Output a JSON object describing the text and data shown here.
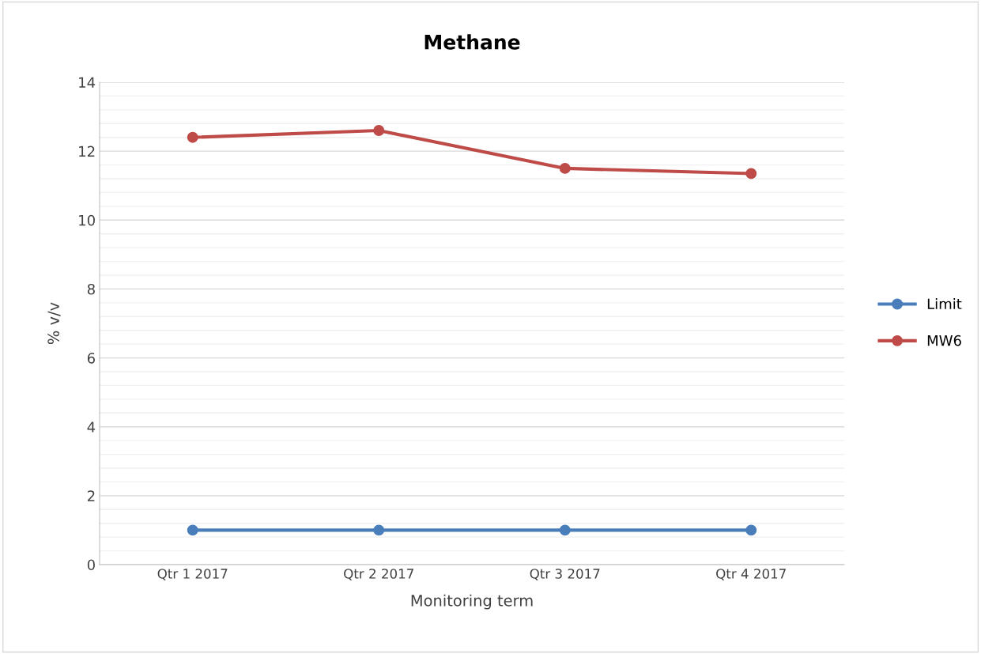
{
  "chart_data": {
    "type": "line",
    "title": "Methane",
    "xlabel": "Monitoring term",
    "ylabel": "% v/v",
    "categories": [
      "Qtr 1 2017",
      "Qtr 2 2017",
      "Qtr 3 2017",
      "Qtr 4 2017"
    ],
    "series": [
      {
        "name": "Limit",
        "color": "#4a7ebb",
        "values": [
          1,
          1,
          1,
          1
        ]
      },
      {
        "name": "MW6",
        "color": "#be4b48",
        "values": [
          12.4,
          12.6,
          11.5,
          11.35
        ]
      }
    ],
    "ylim": [
      0,
      14
    ],
    "yticks": [
      0,
      2,
      4,
      6,
      8,
      10,
      12,
      14
    ],
    "grid": "y",
    "legend": "right",
    "marker": "circle",
    "line_style": "solid"
  }
}
